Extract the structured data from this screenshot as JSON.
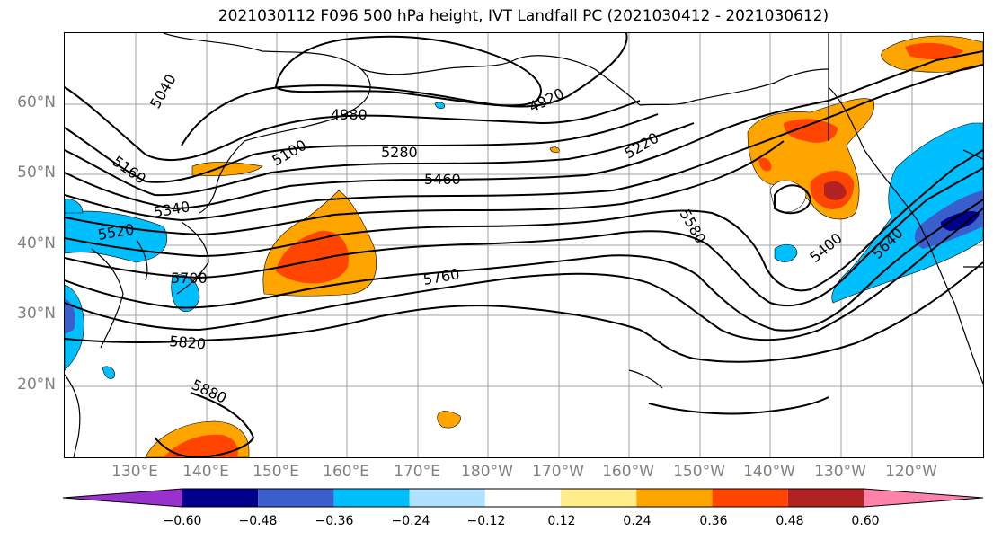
{
  "title": "2021030112 F096 500 hPa height, IVT Landfall PC (2021030412 - 2021030612)",
  "map": {
    "lat_labels": [
      "60°N",
      "50°N",
      "40°N",
      "30°N",
      "20°N"
    ],
    "lon_labels": [
      "130°E",
      "140°E",
      "150°E",
      "160°E",
      "170°E",
      "180°W",
      "170°W",
      "160°W",
      "150°W",
      "140°W",
      "130°W",
      "120°W"
    ],
    "contour_labels": [
      "5040",
      "4920",
      "4980",
      "5100",
      "5160",
      "5280",
      "5220",
      "5460",
      "5340",
      "5520",
      "5580",
      "5400",
      "5640",
      "5700",
      "5760",
      "5820",
      "5880"
    ]
  },
  "colorbar": {
    "tick_labels": [
      "−0.60",
      "−0.48",
      "−0.36",
      "−0.24",
      "−0.12",
      "0.12",
      "0.24",
      "0.36",
      "0.48",
      "0.60"
    ],
    "colors": [
      "#9932cc",
      "#00008b",
      "#3a5fcd",
      "#00bfff",
      "#b0e2ff",
      "#ffffff",
      "#ffec8b",
      "#ffa500",
      "#ff4500",
      "#b22222",
      "#ff82ab"
    ]
  }
}
